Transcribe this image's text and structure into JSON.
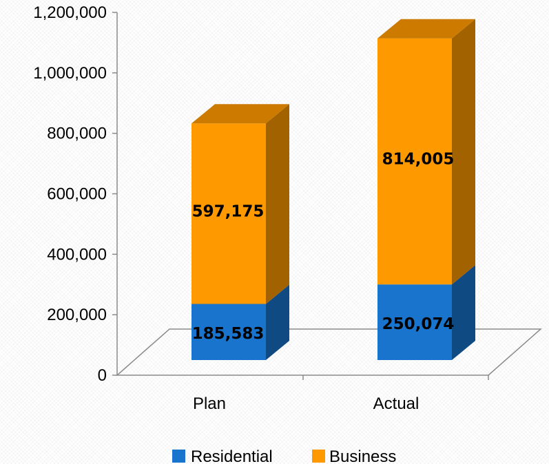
{
  "chart_data": {
    "type": "bar",
    "stacked": true,
    "three_d": true,
    "categories": [
      "Plan",
      "Actual"
    ],
    "series": [
      {
        "name": "Residential",
        "values": [
          185583,
          250074
        ],
        "labels": [
          "185,583",
          "250,074"
        ],
        "color": "#1874cd"
      },
      {
        "name": "Business",
        "values": [
          597175,
          814005
        ],
        "labels": [
          "597,175",
          "814,005"
        ],
        "color": "#ff9900"
      }
    ],
    "ylim": [
      0,
      1200000
    ],
    "y_ticks": [
      0,
      200000,
      400000,
      600000,
      800000,
      1000000,
      1200000
    ],
    "y_tick_labels": [
      "0",
      "200,000",
      "400,000",
      "600,000",
      "800,000",
      "1,000,000",
      "1,200,000"
    ],
    "grid": false,
    "legend_position": "bottom"
  }
}
